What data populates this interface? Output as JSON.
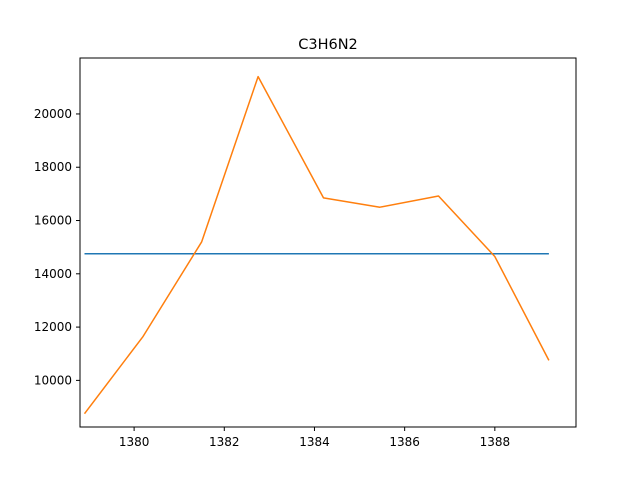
{
  "chart_data": {
    "type": "line",
    "title": "C3H6N2",
    "xlabel": "",
    "ylabel": "",
    "xlim": [
      1378.8,
      1389.8
    ],
    "ylim": [
      8250,
      22100
    ],
    "x_ticks": [
      1380,
      1382,
      1384,
      1386,
      1388
    ],
    "y_ticks": [
      10000,
      12000,
      14000,
      16000,
      18000,
      20000
    ],
    "grid": false,
    "series": [
      {
        "color": "#1f77b4",
        "x": [
          1378.9,
          1389.2
        ],
        "y": [
          14750,
          14750
        ]
      },
      {
        "color": "#ff7f0e",
        "x": [
          1378.9,
          1380.2,
          1381.5,
          1382.75,
          1384.2,
          1385.45,
          1386.75,
          1388.0,
          1389.2
        ],
        "y": [
          8750,
          11650,
          15200,
          21400,
          16850,
          16500,
          16920,
          14650,
          10750
        ]
      }
    ]
  }
}
